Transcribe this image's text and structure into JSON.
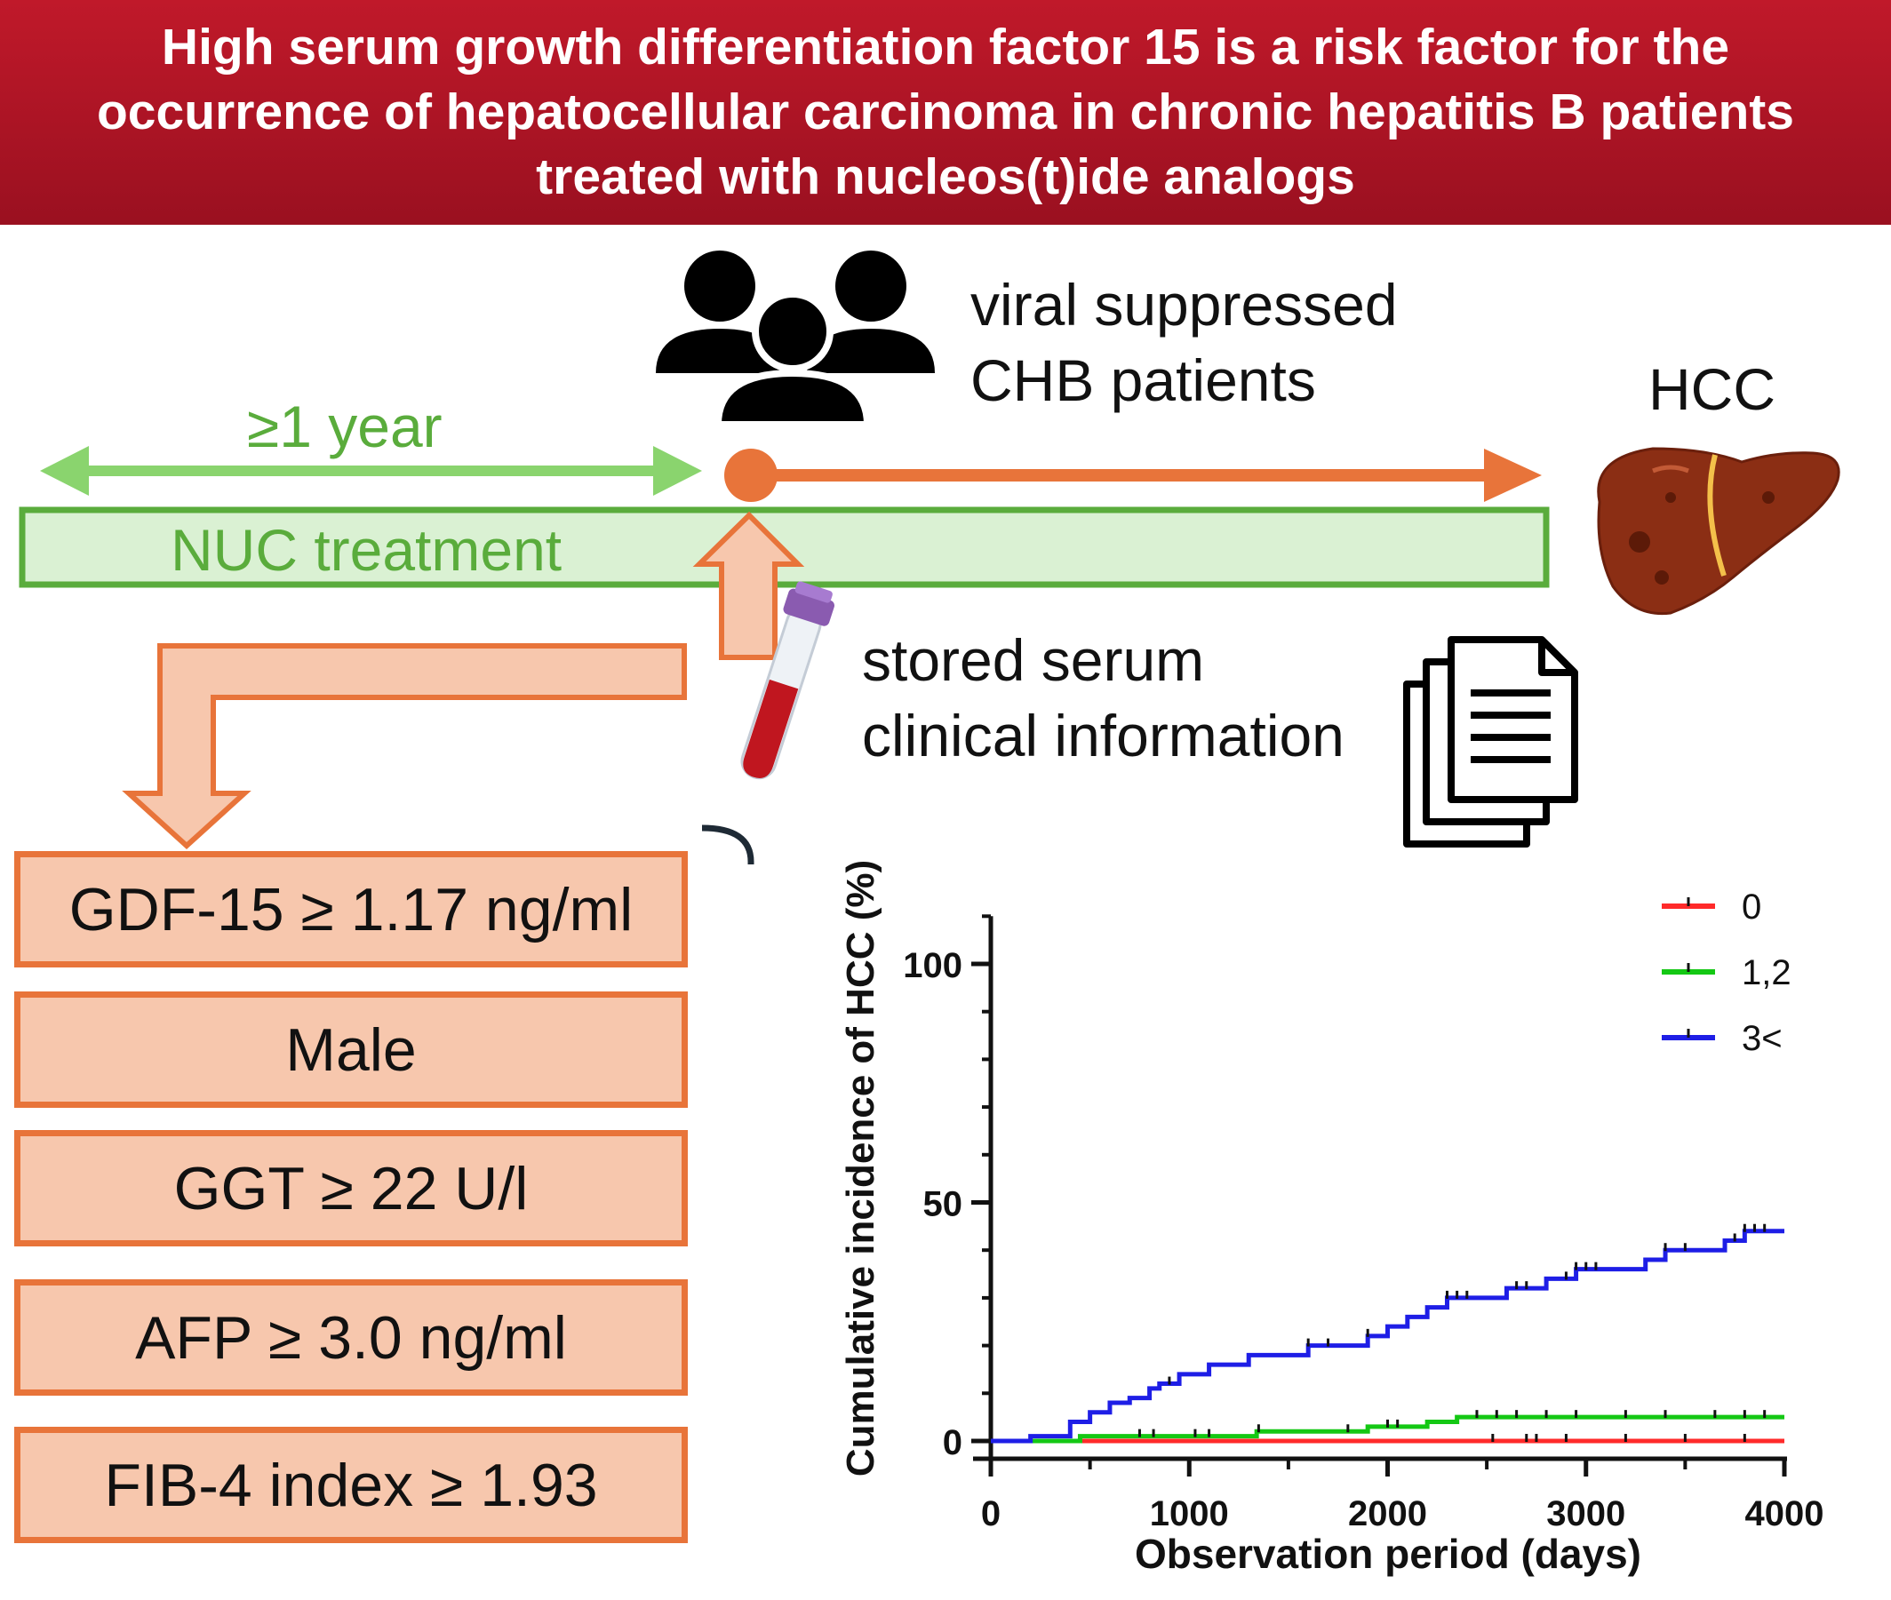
{
  "banner": {
    "title": "High serum growth differentiation factor 15 is a risk factor for the occurrence of hepatocellular carcinoma in chronic hepatitis B patients treated with nucleos(t)ide analogs",
    "background_color": "#b5162a"
  },
  "timeline": {
    "duration_label": "≥1 year",
    "treatment_label": "NUC treatment",
    "cohort_line1": "viral suppressed",
    "cohort_line2": "CHB patients",
    "outcome_label": "HCC",
    "sample_line1": "stored serum",
    "sample_line2": "clinical information",
    "green_color": "#5aac3c",
    "orange_color": "#e8743a"
  },
  "risk_factors": [
    "GDF-15 ≥ 1.17 ng/ml",
    "Male",
    "GGT ≥ 22 U/l",
    "AFP ≥ 3.0 ng/ml",
    "FIB-4 index ≥ 1.93"
  ],
  "chart_data": {
    "type": "line",
    "title": "",
    "xlabel": "Observation period (days)",
    "ylabel": "Cumulative incidence of HCC (%)",
    "xlim": [
      0,
      4000
    ],
    "ylim": [
      0,
      110
    ],
    "xticks": [
      0,
      1000,
      2000,
      3000,
      4000
    ],
    "yticks": [
      0,
      50,
      100
    ],
    "legend_position": "top-right",
    "series": [
      {
        "name": "0",
        "color": "#ff2a2a",
        "steps": [
          [
            0,
            0
          ],
          [
            4000,
            0
          ]
        ],
        "censored": [
          2530,
          2700,
          2750,
          2900,
          3200,
          3500,
          3800
        ]
      },
      {
        "name": "1,2",
        "color": "#14c814",
        "steps": [
          [
            0,
            0
          ],
          [
            450,
            1
          ],
          [
            1340,
            2
          ],
          [
            1900,
            3
          ],
          [
            2200,
            4
          ],
          [
            2350,
            5
          ],
          [
            4000,
            5
          ]
        ],
        "censored": [
          750,
          820,
          1030,
          1100,
          1350,
          1800,
          2000,
          2050,
          2450,
          2550,
          2650,
          2800,
          2950,
          3200,
          3400,
          3650,
          3800,
          3900
        ]
      },
      {
        "name": "3<",
        "color": "#1e1ee6",
        "steps": [
          [
            0,
            0
          ],
          [
            200,
            1
          ],
          [
            400,
            4
          ],
          [
            500,
            6
          ],
          [
            600,
            8
          ],
          [
            700,
            9
          ],
          [
            800,
            11
          ],
          [
            850,
            12
          ],
          [
            950,
            14
          ],
          [
            1100,
            16
          ],
          [
            1300,
            18
          ],
          [
            1600,
            20
          ],
          [
            1900,
            22
          ],
          [
            2000,
            24
          ],
          [
            2100,
            26
          ],
          [
            2200,
            28
          ],
          [
            2300,
            30
          ],
          [
            2600,
            32
          ],
          [
            2800,
            34
          ],
          [
            2950,
            36
          ],
          [
            3300,
            38
          ],
          [
            3400,
            40
          ],
          [
            3700,
            42
          ],
          [
            3800,
            44
          ],
          [
            4000,
            44
          ]
        ],
        "censored": [
          900,
          1600,
          1700,
          1900,
          2300,
          2350,
          2400,
          2650,
          2700,
          2900,
          2950,
          3000,
          3050,
          3400,
          3500,
          3750,
          3800,
          3850,
          3900
        ]
      }
    ]
  }
}
